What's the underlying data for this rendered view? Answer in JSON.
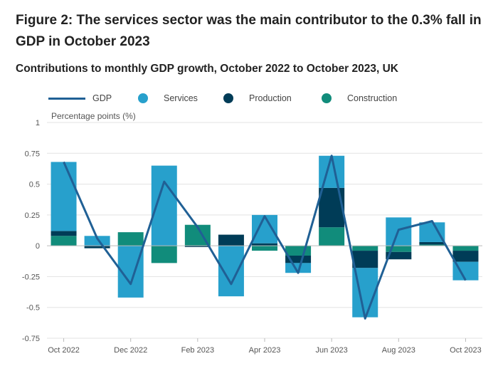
{
  "page": {
    "title": "Figure 2: The services sector was the main contributor to the 0.3% fall in GDP in October 2023",
    "subtitle": "Contributions to monthly GDP growth, October 2022 to October 2023, UK"
  },
  "colors": {
    "gdp": "#206095",
    "services": "#27a0cc",
    "production": "#003c57",
    "construction": "#118c7b"
  },
  "chart_data": {
    "type": "bar",
    "stacked": true,
    "title": "Contributions to monthly GDP growth, October 2022 to October 2023, UK",
    "ylabel": "Percentage points (%)",
    "xlabel": "",
    "ylim": [
      -0.75,
      1
    ],
    "yticks": [
      1,
      0.75,
      0.5,
      0.25,
      0,
      -0.25,
      -0.5,
      -0.75
    ],
    "ytick_labels": [
      "1",
      "0.75",
      "0.5",
      "0.25",
      "0",
      "-0.25",
      "-0.5",
      "-0.75"
    ],
    "categories": [
      "Oct 2022",
      "Nov 2022",
      "Dec 2022",
      "Jan 2023",
      "Feb 2023",
      "Mar 2023",
      "Apr 2023",
      "May 2023",
      "Jun 2023",
      "Jul 2023",
      "Aug 2023",
      "Sep 2023",
      "Oct 2023"
    ],
    "xtick_labels": [
      {
        "index": 0,
        "label": "Oct 2022"
      },
      {
        "index": 2,
        "label": "Dec 2022"
      },
      {
        "index": 4,
        "label": "Feb 2023"
      },
      {
        "index": 6,
        "label": "Apr 2023"
      },
      {
        "index": 8,
        "label": "Jun 2023"
      },
      {
        "index": 10,
        "label": "Aug 2023"
      },
      {
        "index": 12,
        "label": "Oct 2023"
      }
    ],
    "series": [
      {
        "name": "Construction",
        "key": "construction",
        "values": [
          0.08,
          0.0,
          0.11,
          -0.14,
          0.17,
          0.0,
          -0.04,
          -0.08,
          0.15,
          -0.04,
          -0.05,
          0.01,
          -0.04
        ]
      },
      {
        "name": "Production",
        "key": "production",
        "values": [
          0.04,
          -0.02,
          0.0,
          0.0,
          -0.01,
          0.09,
          0.02,
          -0.06,
          0.32,
          -0.14,
          -0.06,
          0.02,
          -0.09
        ]
      },
      {
        "name": "Services",
        "key": "services",
        "values": [
          0.56,
          0.08,
          -0.42,
          0.65,
          0.0,
          -0.41,
          0.23,
          -0.08,
          0.26,
          -0.4,
          0.23,
          0.16,
          -0.15
        ]
      }
    ],
    "line": {
      "name": "GDP",
      "values": [
        0.68,
        0.06,
        -0.31,
        0.52,
        0.15,
        -0.31,
        0.24,
        -0.22,
        0.73,
        -0.59,
        0.13,
        0.2,
        -0.28
      ]
    },
    "legend": [
      {
        "name": "GDP",
        "kind": "line",
        "key": "gdp"
      },
      {
        "name": "Services",
        "kind": "dot",
        "key": "services"
      },
      {
        "name": "Production",
        "kind": "dot",
        "key": "production"
      },
      {
        "name": "Construction",
        "kind": "dot",
        "key": "construction"
      }
    ],
    "legend_position": "top",
    "grid": true
  }
}
